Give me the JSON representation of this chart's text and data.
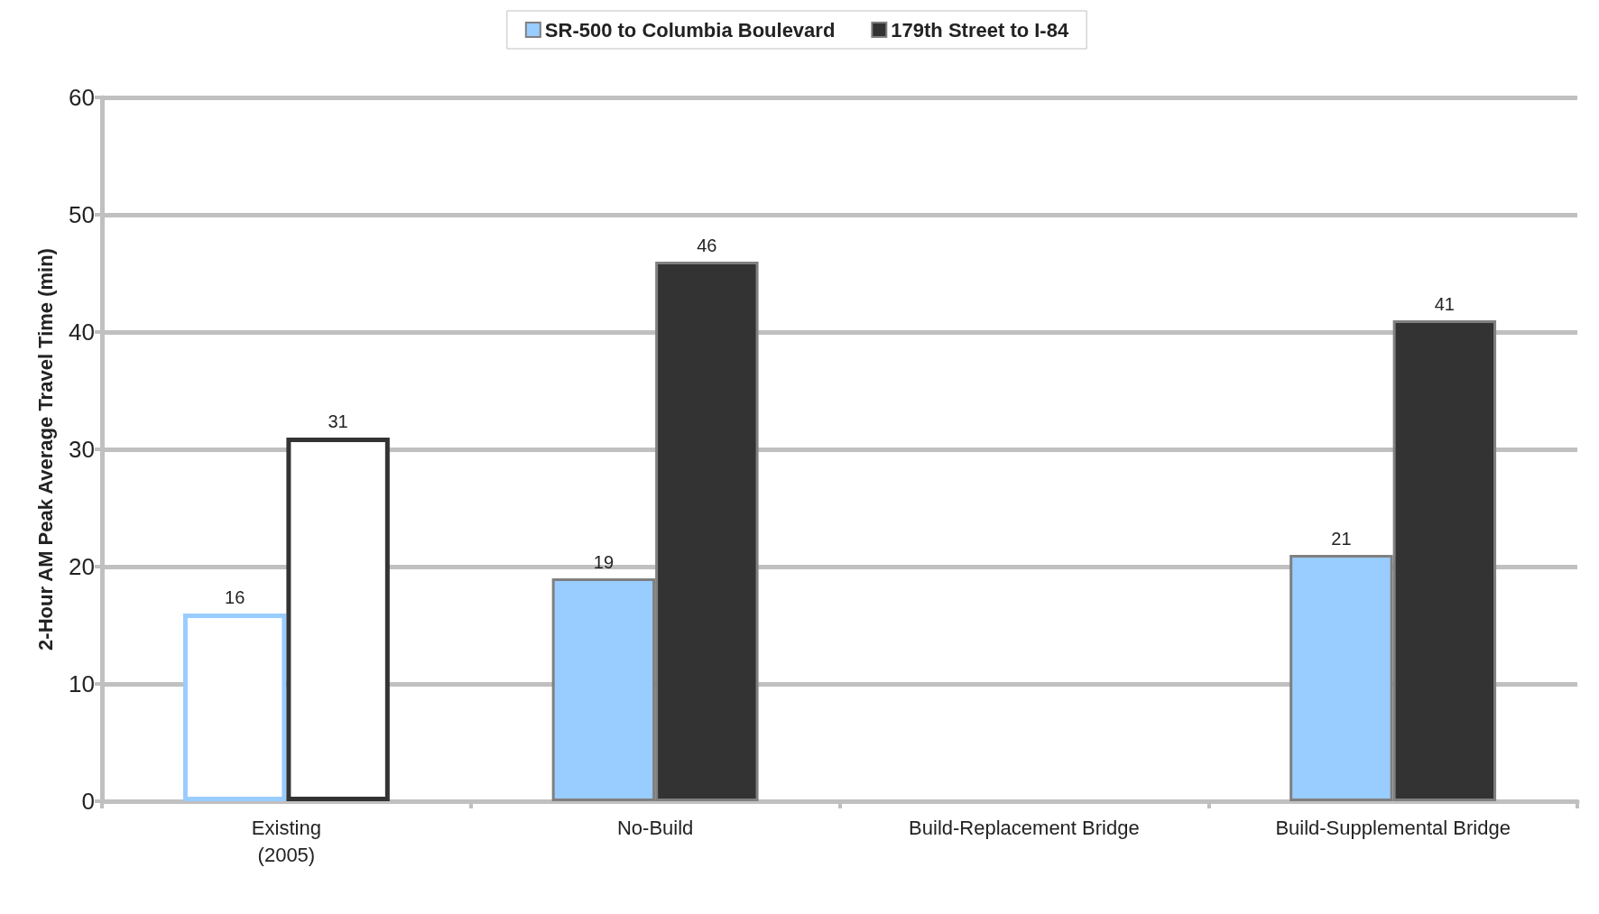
{
  "chart_data": {
    "type": "bar",
    "ylabel": "2-Hour AM Peak Average Travel Time (min)",
    "categories": [
      "Existing\n(2005)",
      "No-Build",
      "Build-Replacement Bridge",
      "Build-Supplemental Bridge"
    ],
    "series": [
      {
        "name": "SR-500 to Columbia Boulevard",
        "color": "#99ccff",
        "colors": [
          "#ffffff",
          "#99ccff",
          "#99ccff",
          "#99ccff"
        ],
        "values": [
          16,
          19,
          null,
          21
        ]
      },
      {
        "name": "179th Street to I-84",
        "color": "#333333",
        "colors": [
          "#ffffff",
          "#333333",
          "#333333",
          "#333333"
        ],
        "values": [
          31,
          46,
          null,
          41
        ]
      }
    ],
    "ylim": [
      0,
      60
    ],
    "yticks": [
      0,
      10,
      20,
      30,
      40,
      50,
      60
    ],
    "grid": "y",
    "legend": "top",
    "data_labels": true
  }
}
